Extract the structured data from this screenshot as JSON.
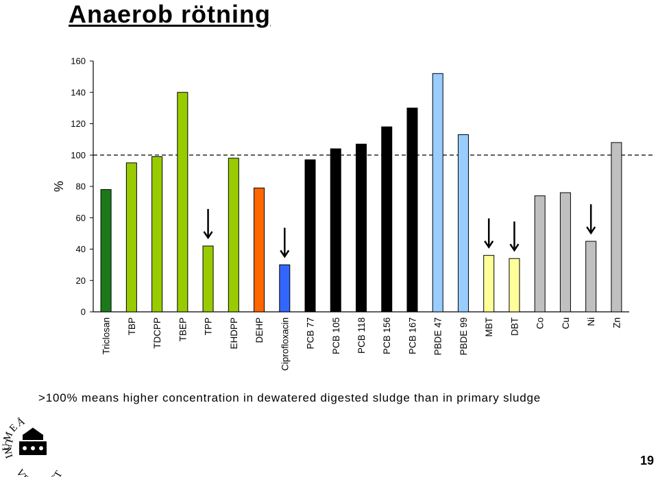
{
  "slide": {
    "title": "Anaerob rötning",
    "footnote": ">100% means higher concentration in dewatered digested sludge than in primary sludge",
    "page_number": "19"
  },
  "logo": {
    "arc_top": "UMEÅ",
    "arc_left": "UNI",
    "arc_bottom": "VERSITET"
  },
  "chart_data": {
    "type": "bar",
    "title": "",
    "xlabel": "",
    "ylabel": "%",
    "ylim": [
      0,
      160
    ],
    "yticks": [
      0,
      20,
      40,
      60,
      80,
      100,
      120,
      140,
      160
    ],
    "reference_line": {
      "value": 100,
      "style": "dashed"
    },
    "categories": [
      "Triclosan",
      "TBP",
      "TDCPP",
      "TBEP",
      "TPP",
      "EHDPP",
      "DEHP",
      "Ciprofloxacin",
      "PCB 77",
      "PCB 105",
      "PCB 118",
      "PCB 156",
      "PCB 167",
      "PBDE 47",
      "PBDE 99",
      "MBT",
      "DBT",
      "Co",
      "Cu",
      "Ni",
      "Zn"
    ],
    "values": [
      78,
      95,
      99,
      140,
      42,
      98,
      79,
      30,
      97,
      104,
      107,
      118,
      130,
      152,
      113,
      36,
      34,
      74,
      76,
      45,
      108
    ],
    "colors": [
      "#1a7a1a",
      "#99cc00",
      "#99cc00",
      "#99cc00",
      "#99cc00",
      "#99cc00",
      "#ff6600",
      "#3366ff",
      "#000000",
      "#000000",
      "#000000",
      "#000000",
      "#000000",
      "#99ccff",
      "#99ccff",
      "#ffff99",
      "#ffff99",
      "#c0c0c0",
      "#c0c0c0",
      "#c0c0c0",
      "#c0c0c0"
    ],
    "arrows_over": [
      "TPP",
      "Ciprofloxacin",
      "MBT",
      "DBT",
      "Ni"
    ],
    "grid": false,
    "legend": "none"
  }
}
